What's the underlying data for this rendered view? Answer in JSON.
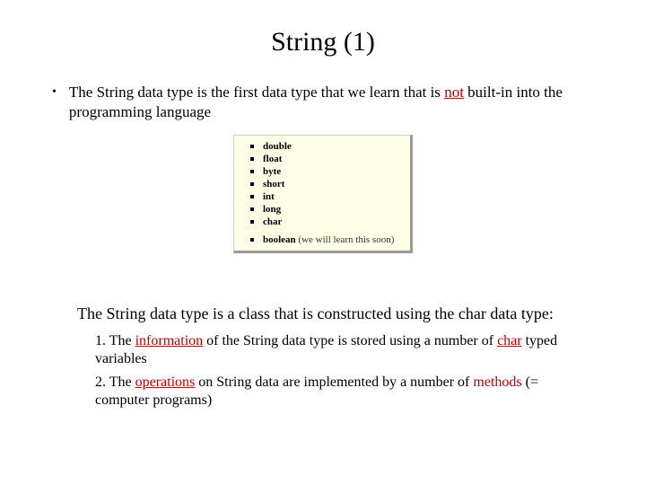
{
  "title": "String (1)",
  "bullet": {
    "pre": "The String data type is the first data type that we learn that is ",
    "not": "not",
    "post": " built-in into the programming language"
  },
  "typesBox": {
    "background": "#ffffe8",
    "items": [
      "double",
      "float",
      "byte",
      "short",
      "int",
      "long",
      "char"
    ],
    "last": "boolean",
    "lastNote": "(we will learn this soon)"
  },
  "para2": "The String data type is a class that is constructed using the char data type:",
  "sub1": {
    "a": "1. The ",
    "b": "information",
    "c": " of the String data type is stored using a number of ",
    "d": "char",
    "e": " typed variables"
  },
  "sub2": {
    "a": "2. The ",
    "b": "operations",
    "c": " on String data are implemented by a number of ",
    "d": "methods",
    "e": " (= computer programs)"
  }
}
